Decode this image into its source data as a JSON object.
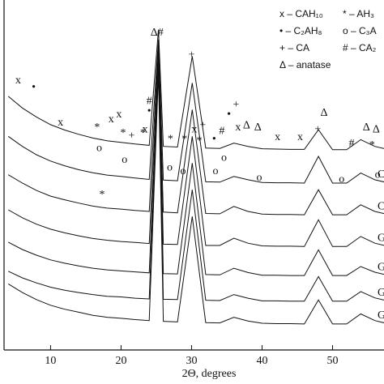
{
  "chart_data": {
    "type": "line",
    "x_label": "2Θ, degrees",
    "x": [
      4,
      6,
      8,
      10,
      12,
      14,
      16,
      18,
      20,
      22,
      24,
      25.3,
      26,
      28,
      30.1,
      32,
      34,
      36,
      38,
      40,
      42,
      44,
      46,
      48,
      50,
      52,
      54,
      56,
      58
    ],
    "xlim": [
      3.4,
      57.3
    ],
    "xticks": [
      10,
      20,
      30,
      40,
      50
    ],
    "ylim": [
      0,
      100
    ],
    "color": "#111111",
    "series": [
      {
        "values": [
          76,
          72.5,
          69.8,
          67.5,
          65.9,
          64.6,
          63.5,
          62.7,
          62.2,
          61.7,
          61.3,
          96,
          61,
          60.8,
          88,
          60.5,
          60.4,
          62,
          61,
          60.3,
          60.2,
          60.1,
          60.1,
          66,
          60,
          60,
          63,
          61,
          60
        ]
      },
      {
        "name": "C",
        "values": [
          64,
          61,
          58.5,
          56.6,
          55.2,
          54,
          53.1,
          52.4,
          52,
          51.5,
          51.1,
          93,
          50.9,
          50.7,
          80,
          50.4,
          50.3,
          52,
          51,
          50.2,
          50.1,
          50.1,
          50,
          58,
          50,
          50,
          53,
          51,
          50
        ]
      },
      {
        "name": "C",
        "values": [
          52.5,
          50,
          47.8,
          46.1,
          45,
          44,
          43.1,
          42.5,
          42.2,
          41.8,
          41.5,
          91,
          41.3,
          41.1,
          72,
          40.9,
          40.8,
          43,
          41.5,
          40.7,
          40.6,
          40.6,
          40.5,
          48,
          40.5,
          40.5,
          43.5,
          41.5,
          40.5
        ]
      },
      {
        "name": "G",
        "values": [
          42,
          39.6,
          37.7,
          36.2,
          35.1,
          34.2,
          33.4,
          32.9,
          32.5,
          32.2,
          31.9,
          89,
          31.7,
          31.6,
          64,
          31.3,
          31.3,
          33.5,
          32,
          31.2,
          31.1,
          31.1,
          31,
          39,
          31,
          31,
          34,
          32,
          31
        ]
      },
      {
        "name": "G",
        "values": [
          32.3,
          30.1,
          28.4,
          27,
          26,
          25.2,
          24.5,
          24,
          23.7,
          23.4,
          23.1,
          87,
          22.9,
          22.8,
          56,
          22.6,
          22.5,
          24.5,
          23.2,
          22.4,
          22.4,
          22.3,
          22.3,
          30,
          22.3,
          22.3,
          25,
          23.3,
          22.3
        ]
      },
      {
        "name": "G",
        "values": [
          23.6,
          21.6,
          20.1,
          18.8,
          17.9,
          17.2,
          16.6,
          16.1,
          15.9,
          15.5,
          15.3,
          85,
          15.2,
          15.1,
          48,
          14.9,
          14.8,
          16.6,
          15.5,
          14.7,
          14.7,
          14.6,
          14.6,
          22,
          14.6,
          14.6,
          17.5,
          15.6,
          14.6
        ]
      },
      {
        "name": "G",
        "values": [
          19.8,
          17.2,
          15.1,
          13.4,
          12.2,
          11.3,
          10.4,
          9.8,
          9.5,
          9.1,
          8.8,
          83,
          8.6,
          8.4,
          40,
          8.2,
          8.1,
          9.8,
          8.7,
          8,
          7.9,
          7.9,
          7.8,
          15,
          7.8,
          7.8,
          10.8,
          8.8,
          7.8
        ]
      }
    ],
    "key": [
      "x – CAH₁₀",
      "* – AH₃",
      "• – C₂AH₈",
      "o – C₃A",
      "+ – CA",
      "# – CA₂",
      "Δ – anatase"
    ],
    "annotations": [
      {
        "x": 5.4,
        "y": 80.6,
        "text": "x"
      },
      {
        "x": 7.6,
        "y": 78.6,
        "text": "•"
      },
      {
        "x": 11.4,
        "y": 68,
        "text": "x"
      },
      {
        "x": 16.6,
        "y": 66.5,
        "text": "*"
      },
      {
        "x": 18.6,
        "y": 69,
        "text": "x"
      },
      {
        "x": 19.7,
        "y": 70.4,
        "text": "x"
      },
      {
        "x": 20.3,
        "y": 64.8,
        "text": "*"
      },
      {
        "x": 21.5,
        "y": 64,
        "text": "+"
      },
      {
        "x": 23.1,
        "y": 64.8,
        "text": "*"
      },
      {
        "x": 23.4,
        "y": 66,
        "text": "x"
      },
      {
        "x": 24,
        "y": 71.4,
        "text": "•"
      },
      {
        "x": 24,
        "y": 74.5,
        "text": "#"
      },
      {
        "x": 25.1,
        "y": 95,
        "text": "Δ#"
      },
      {
        "x": 27,
        "y": 63,
        "text": "*"
      },
      {
        "x": 29,
        "y": 63,
        "text": "*"
      },
      {
        "x": 30,
        "y": 88.3,
        "text": "+"
      },
      {
        "x": 30.4,
        "y": 66,
        "text": "x"
      },
      {
        "x": 31.6,
        "y": 67.2,
        "text": "+"
      },
      {
        "x": 31.1,
        "y": 62.6,
        "text": "*"
      },
      {
        "x": 33.2,
        "y": 63,
        "text": "•"
      },
      {
        "x": 34.3,
        "y": 65.5,
        "text": "#"
      },
      {
        "x": 35.3,
        "y": 70.4,
        "text": "•"
      },
      {
        "x": 36.3,
        "y": 73.3,
        "text": "+"
      },
      {
        "x": 36.6,
        "y": 66.5,
        "text": "x"
      },
      {
        "x": 37.8,
        "y": 67.2,
        "text": "Δ"
      },
      {
        "x": 39.4,
        "y": 66.5,
        "text": "Δ"
      },
      {
        "x": 42.2,
        "y": 63.6,
        "text": "x"
      },
      {
        "x": 45.4,
        "y": 63.6,
        "text": "x"
      },
      {
        "x": 47.9,
        "y": 66,
        "text": "+"
      },
      {
        "x": 48.8,
        "y": 70.9,
        "text": "Δ"
      },
      {
        "x": 52.7,
        "y": 61.7,
        "text": "#"
      },
      {
        "x": 54.8,
        "y": 66.5,
        "text": "Δ"
      },
      {
        "x": 56.2,
        "y": 66,
        "text": "Δ"
      },
      {
        "x": 55.6,
        "y": 61.2,
        "text": "*"
      },
      {
        "x": 16.9,
        "y": 60.4,
        "text": "o"
      },
      {
        "x": 20.5,
        "y": 56.8,
        "text": "o"
      },
      {
        "x": 26.9,
        "y": 54.6,
        "text": "o"
      },
      {
        "x": 28.8,
        "y": 53.4,
        "text": "o"
      },
      {
        "x": 33.4,
        "y": 53.4,
        "text": "o"
      },
      {
        "x": 34.6,
        "y": 57.5,
        "text": "o"
      },
      {
        "x": 39.6,
        "y": 51.5,
        "text": "o"
      },
      {
        "x": 51.3,
        "y": 51,
        "text": "o"
      },
      {
        "x": 56.4,
        "y": 52.4,
        "text": "o"
      },
      {
        "x": 17.3,
        "y": 46.4,
        "text": "*"
      }
    ]
  }
}
